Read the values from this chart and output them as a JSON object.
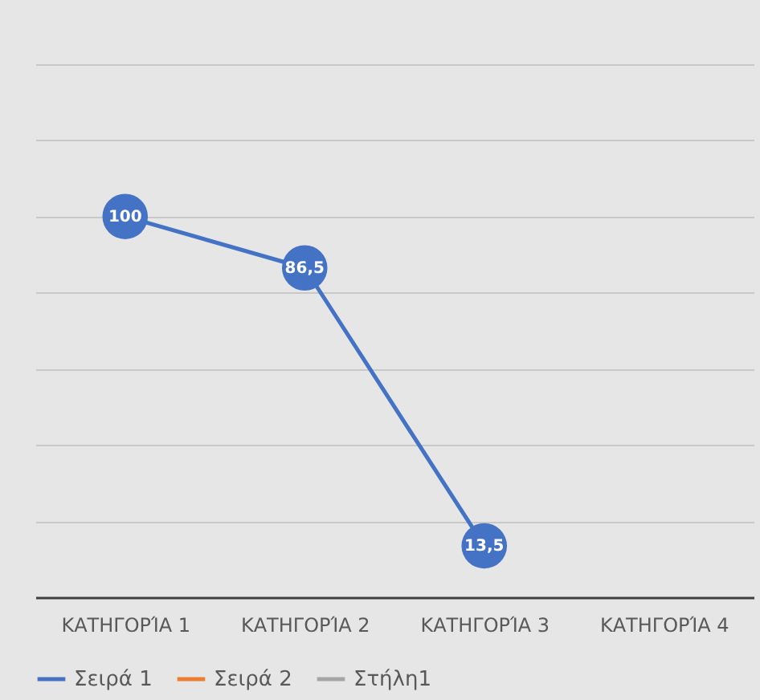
{
  "chart_data": {
    "type": "line",
    "categories": [
      "ΚΑΤΗΓΟΡΊΑ 1",
      "ΚΑΤΗΓΟΡΊΑ 2",
      "ΚΑΤΗΓΟΡΊΑ 3",
      "ΚΑΤΗΓΟΡΊΑ 4"
    ],
    "series": [
      {
        "name": "Σειρά 1",
        "color": "#4472c4",
        "values": [
          100,
          86.5,
          13.5,
          null
        ],
        "value_labels": [
          "100",
          "86,5",
          "13,5",
          null
        ]
      },
      {
        "name": "Σειρά 2",
        "color": "#ed7d31",
        "values": [
          null,
          null,
          null,
          null
        ]
      },
      {
        "name": "Στήλη1",
        "color": "#a5a5a5",
        "values": [
          null,
          null,
          null,
          null
        ]
      }
    ],
    "ylim": [
      0,
      140
    ],
    "yticks": [
      {
        "value": 0,
        "label": null
      },
      {
        "value": 20,
        "label": null
      },
      {
        "value": 40,
        "label": null
      },
      {
        "value": 60,
        "label": null
      },
      {
        "value": 80,
        "label": null
      },
      {
        "value": 100,
        "label": null
      },
      {
        "value": 120,
        "label": null
      },
      {
        "value": 140,
        "label": null
      }
    ],
    "tick_labels": "x",
    "grid": "y",
    "legend": "bottom",
    "marker": "circle",
    "line_style": "solid"
  }
}
